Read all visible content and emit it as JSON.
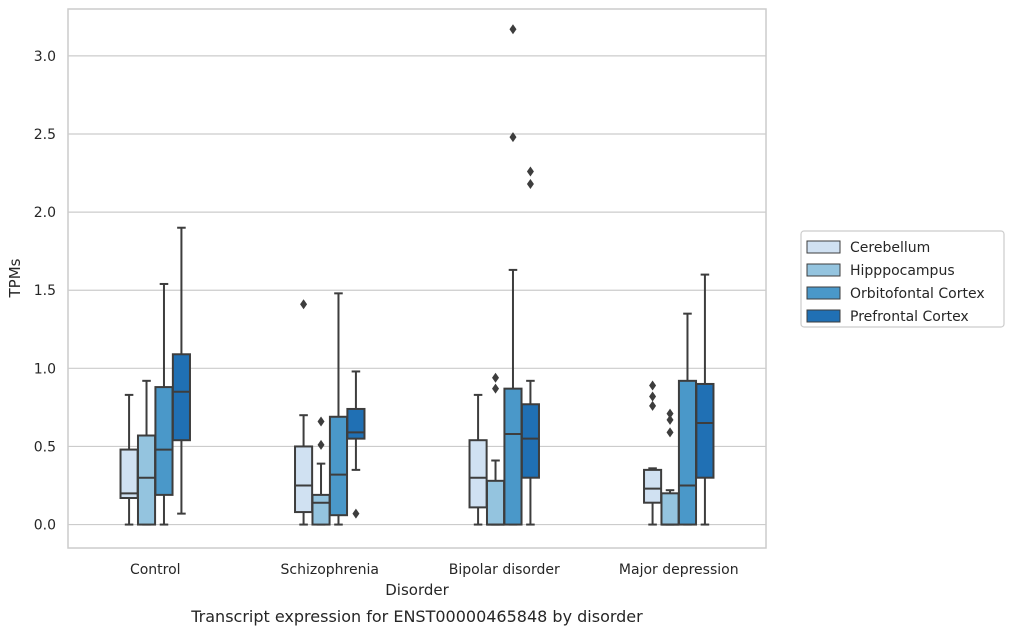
{
  "caption": "Transcript expression for ENST00000465848 by disorder",
  "chart_data": {
    "type": "box",
    "xlabel": "Disorder",
    "ylabel": "TPMs",
    "ylim": [
      -0.15,
      3.3
    ],
    "yticks": [
      0.0,
      0.5,
      1.0,
      1.5,
      2.0,
      2.5,
      3.0
    ],
    "ytick_labels": [
      "0.0",
      "0.5",
      "1.0",
      "1.5",
      "2.0",
      "2.5",
      "3.0"
    ],
    "grid": "horizontal",
    "legend_position": "right",
    "categories": [
      "Control",
      "Schizophrenia",
      "Bipolar disorder",
      "Major depression"
    ],
    "series": [
      {
        "name": "Cerebellum",
        "color": "#d0e1f2",
        "boxes": [
          {
            "whisker_low": 0.0,
            "q1": 0.17,
            "median": 0.2,
            "q3": 0.48,
            "whisker_high": 0.83,
            "outliers": []
          },
          {
            "whisker_low": 0.0,
            "q1": 0.08,
            "median": 0.25,
            "q3": 0.5,
            "whisker_high": 0.7,
            "outliers": [
              1.41
            ]
          },
          {
            "whisker_low": 0.0,
            "q1": 0.11,
            "median": 0.3,
            "q3": 0.54,
            "whisker_high": 0.83,
            "outliers": []
          },
          {
            "whisker_low": 0.0,
            "q1": 0.14,
            "median": 0.23,
            "q3": 0.35,
            "whisker_high": 0.36,
            "outliers": [
              0.76,
              0.82,
              0.89
            ]
          }
        ]
      },
      {
        "name": "Hipppocampus",
        "color": "#94c4df",
        "boxes": [
          {
            "whisker_low": 0.0,
            "q1": 0.0,
            "median": 0.3,
            "q3": 0.57,
            "whisker_high": 0.92,
            "outliers": []
          },
          {
            "whisker_low": 0.0,
            "q1": 0.0,
            "median": 0.14,
            "q3": 0.19,
            "whisker_high": 0.39,
            "outliers": [
              0.51,
              0.66
            ]
          },
          {
            "whisker_low": 0.0,
            "q1": 0.0,
            "median": 0.0,
            "q3": 0.28,
            "whisker_high": 0.41,
            "outliers": [
              0.87,
              0.94
            ]
          },
          {
            "whisker_low": 0.0,
            "q1": 0.0,
            "median": 0.0,
            "q3": 0.2,
            "whisker_high": 0.22,
            "outliers": [
              0.59,
              0.67,
              0.71
            ]
          }
        ]
      },
      {
        "name": "Orbitofontal Cortex",
        "color": "#4a98c9",
        "boxes": [
          {
            "whisker_low": 0.0,
            "q1": 0.19,
            "median": 0.48,
            "q3": 0.88,
            "whisker_high": 1.54,
            "outliers": []
          },
          {
            "whisker_low": 0.0,
            "q1": 0.06,
            "median": 0.32,
            "q3": 0.69,
            "whisker_high": 1.48,
            "outliers": []
          },
          {
            "whisker_low": 0.0,
            "q1": 0.0,
            "median": 0.58,
            "q3": 0.87,
            "whisker_high": 1.63,
            "outliers": [
              2.48,
              3.17
            ]
          },
          {
            "whisker_low": 0.0,
            "q1": 0.0,
            "median": 0.25,
            "q3": 0.92,
            "whisker_high": 1.35,
            "outliers": []
          }
        ]
      },
      {
        "name": "Prefrontal Cortex",
        "color": "#2070b4",
        "boxes": [
          {
            "whisker_low": 0.07,
            "q1": 0.54,
            "median": 0.85,
            "q3": 1.09,
            "whisker_high": 1.9,
            "outliers": []
          },
          {
            "whisker_low": 0.35,
            "q1": 0.55,
            "median": 0.59,
            "q3": 0.74,
            "whisker_high": 0.98,
            "outliers": [
              0.07
            ]
          },
          {
            "whisker_low": 0.0,
            "q1": 0.3,
            "median": 0.55,
            "q3": 0.77,
            "whisker_high": 0.92,
            "outliers": [
              2.18,
              2.26
            ]
          },
          {
            "whisker_low": 0.0,
            "q1": 0.3,
            "median": 0.65,
            "q3": 0.9,
            "whisker_high": 1.6,
            "outliers": []
          }
        ]
      }
    ]
  }
}
